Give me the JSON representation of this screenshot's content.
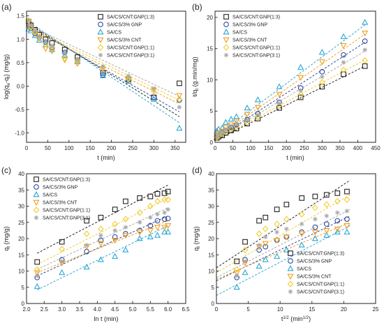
{
  "colors": {
    "SA/CS/CNT:GNP(1:3)": "#222222",
    "SA/CS/3% GNP": "#2e4a9a",
    "SA/CS": "#2aa7d6",
    "SA/CS/3% CNT": "#f0a020",
    "SA/CS/CNT:GNP(1:1)": "#f2cc30",
    "SA/CS/CNT:GNP(3:1)": "#a8a8a8"
  },
  "markers": {
    "SA/CS/CNT:GNP(1:3)": "square",
    "SA/CS/3% GNP": "circle",
    "SA/CS": "triangle-up",
    "SA/CS/3% CNT": "triangle-down",
    "SA/CS/CNT:GNP(1:1)": "diamond",
    "SA/CS/CNT:GNP(3:1)": "asterisk"
  },
  "chart_data": [
    {
      "panel": "(a)",
      "type": "scatter",
      "xlabel": "t (min)",
      "ylabel": "log(qe-qt) (mg/g)",
      "xlim": [
        0,
        375
      ],
      "ylim": [
        -1.2,
        1.6
      ],
      "xticks": [
        "0",
        "50",
        "100",
        "150",
        "200",
        "250",
        "300",
        "350"
      ],
      "yticks": [
        "-1.0",
        "-0.5",
        "0.0",
        "0.5",
        "1.0",
        "1.5"
      ],
      "legend_position": "top-right",
      "fit_lines": "dashed",
      "x": [
        5,
        10,
        20,
        30,
        45,
        60,
        90,
        120,
        180,
        240,
        300,
        360
      ],
      "series": [
        {
          "name": "SA/CS/CNT:GNP(1:3)",
          "values": [
            1.38,
            1.3,
            1.2,
            1.1,
            1.0,
            0.92,
            0.78,
            0.62,
            0.28,
            0.14,
            -0.24,
            0.06
          ],
          "fit": [
            [
              0,
              1.35
            ],
            [
              360,
              -0.65
            ]
          ]
        },
        {
          "name": "SA/CS/3% GNP",
          "values": [
            1.3,
            1.24,
            1.12,
            1.04,
            0.94,
            0.82,
            0.72,
            0.55,
            0.24,
            0.14,
            -0.24,
            -0.3
          ],
          "fit": [
            [
              0,
              1.3
            ],
            [
              360,
              -0.55
            ]
          ]
        },
        {
          "name": "SA/CS",
          "values": [
            1.22,
            1.18,
            1.08,
            0.98,
            0.88,
            0.78,
            0.66,
            0.52,
            0.22,
            0.1,
            -0.28,
            -0.9
          ],
          "fit": [
            [
              0,
              1.4
            ],
            [
              360,
              -0.78
            ]
          ]
        },
        {
          "name": "SA/CS/3% CNT",
          "values": [
            1.38,
            1.26,
            1.14,
            1.02,
            0.8,
            0.75,
            0.56,
            0.48,
            0.36,
            0.16,
            -0.08,
            -0.2
          ],
          "fit": [
            [
              0,
              1.25
            ],
            [
              360,
              -0.38
            ]
          ]
        },
        {
          "name": "SA/CS/CNT:GNP(1:1)",
          "values": [
            1.4,
            1.25,
            1.14,
            1.05,
            0.9,
            0.84,
            0.6,
            0.55,
            0.4,
            0.15,
            -0.12,
            -0.28
          ],
          "fit": [
            [
              0,
              1.28
            ],
            [
              360,
              -0.3
            ]
          ]
        },
        {
          "name": "SA/CS/CNT:GNP(3:1)",
          "values": [
            1.4,
            1.3,
            1.18,
            1.06,
            0.96,
            0.86,
            0.72,
            0.58,
            0.42,
            0.22,
            -0.05,
            -0.45
          ],
          "fit": [
            [
              0,
              1.32
            ],
            [
              360,
              -0.22
            ]
          ]
        }
      ]
    },
    {
      "panel": "(b)",
      "type": "scatter",
      "xlabel": "t (min)",
      "ylabel": "t/qt (g.min/mg)",
      "xlim": [
        0,
        450
      ],
      "ylim": [
        0,
        21
      ],
      "xticks": [
        "0",
        "50",
        "100",
        "150",
        "200",
        "250",
        "300",
        "350",
        "400",
        "450"
      ],
      "yticks": [
        "0",
        "5",
        "10",
        "15",
        "20"
      ],
      "legend_position": "top-left",
      "fit_lines": "dashed",
      "x": [
        5,
        10,
        20,
        30,
        45,
        60,
        90,
        120,
        180,
        240,
        300,
        360,
        420
      ],
      "series": [
        {
          "name": "SA/CS/CNT:GNP(1:3)",
          "values": [
            0.7,
            0.9,
            1.1,
            1.5,
            1.9,
            2.2,
            3.0,
            3.8,
            5.5,
            7.2,
            8.9,
            10.9,
            12.2
          ],
          "fit": [
            [
              0,
              0.3
            ],
            [
              420,
              12.2
            ]
          ]
        },
        {
          "name": "SA/CS/3% GNP",
          "values": [
            0.9,
            1.1,
            1.5,
            1.9,
            2.4,
            2.8,
            3.6,
            4.6,
            6.4,
            8.7,
            11.3,
            14.0,
            16.2
          ],
          "fit": [
            [
              0,
              0.5
            ],
            [
              420,
              16.0
            ]
          ]
        },
        {
          "name": "SA/CS",
          "values": [
            1.8,
            2.1,
            2.3,
            3.2,
            3.7,
            4.1,
            5.5,
            6.8,
            8.9,
            12.0,
            14.4,
            16.9,
            19.2
          ],
          "fit": [
            [
              0,
              0.9
            ],
            [
              420,
              18.8
            ]
          ]
        },
        {
          "name": "SA/CS/3% CNT",
          "values": [
            1.0,
            1.4,
            1.8,
            2.4,
            2.8,
            3.4,
            4.5,
            5.6,
            7.7,
            10.4,
            12.9,
            15.5,
            17.5
          ],
          "fit": [
            [
              0,
              0.7
            ],
            [
              420,
              17.3
            ]
          ]
        },
        {
          "name": "SA/CS/CNT:GNP(1:1)",
          "values": [
            0.8,
            1.0,
            1.4,
            1.7,
            2.1,
            2.5,
            3.2,
            4.1,
            5.9,
            7.7,
            9.6,
            11.6,
            13.1
          ],
          "fit": [
            [
              0,
              0.4
            ],
            [
              420,
              13.2
            ]
          ]
        },
        {
          "name": "SA/CS/CNT:GNP(3:1)",
          "values": [
            0.9,
            1.2,
            1.6,
            2.0,
            2.5,
            2.8,
            3.5,
            4.4,
            6.2,
            8.3,
            10.5,
            12.8,
            14.8
          ],
          "fit": [
            [
              0,
              0.5
            ],
            [
              420,
              14.6
            ]
          ]
        }
      ]
    },
    {
      "panel": "(c)",
      "type": "scatter",
      "xlabel": "ln t (min)",
      "ylabel": "qt (mg/g)",
      "xlim": [
        2.0,
        6.5
      ],
      "ylim": [
        0,
        40
      ],
      "xticks": [
        "2.0",
        "2.5",
        "3.0",
        "3.5",
        "4.0",
        "4.5",
        "5.0",
        "5.5",
        "6.0",
        "6.5"
      ],
      "yticks": [
        "0",
        "5",
        "10",
        "15",
        "20",
        "25",
        "30",
        "35",
        "40"
      ],
      "legend_position": "top-left",
      "fit_lines": "dashed",
      "x": [
        2.3,
        3.0,
        3.7,
        4.1,
        4.5,
        4.8,
        5.2,
        5.5,
        5.7,
        5.9,
        6.0
      ],
      "series": [
        {
          "name": "SA/CS/CNT:GNP(1:3)",
          "values": [
            12.8,
            19.0,
            25.5,
            26.5,
            29.0,
            31.5,
            32.5,
            33.0,
            33.8,
            34.0,
            34.5
          ],
          "fit": [
            [
              2.3,
              15.5
            ],
            [
              6.0,
              36.5
            ]
          ]
        },
        {
          "name": "SA/CS/3% GNP",
          "values": [
            8.0,
            13.5,
            16.0,
            19.5,
            20.5,
            21.5,
            22.5,
            24.0,
            25.5,
            26.0,
            26.2
          ],
          "fit": [
            [
              2.3,
              8.5
            ],
            [
              6.0,
              27.0
            ]
          ]
        },
        {
          "name": "SA/CS",
          "values": [
            5.2,
            9.5,
            11.2,
            13.5,
            14.5,
            16.5,
            20.0,
            20.5,
            21.0,
            22.0,
            22.0
          ],
          "fit": [
            [
              2.3,
              4.2
            ],
            [
              6.0,
              24.0
            ]
          ]
        },
        {
          "name": "SA/CS/3% CNT",
          "values": [
            9.5,
            12.5,
            17.5,
            18.5,
            19.5,
            21.0,
            22.0,
            22.5,
            23.5,
            23.5,
            24.0
          ],
          "fit": [
            [
              2.3,
              9.5
            ],
            [
              6.0,
              25.5
            ]
          ]
        },
        {
          "name": "SA/CS/CNT:GNP(1:1)",
          "values": [
            10.5,
            16.8,
            21.5,
            23.0,
            24.5,
            26.0,
            28.0,
            30.0,
            31.5,
            32.0,
            32.0
          ],
          "fit": [
            [
              2.3,
              12.0
            ],
            [
              6.0,
              32.5
            ]
          ]
        },
        {
          "name": "SA/CS/CNT:GNP(3:1)",
          "values": [
            8.5,
            13.0,
            18.0,
            21.0,
            22.5,
            23.5,
            25.0,
            26.5,
            27.5,
            28.0,
            29.0
          ],
          "fit": [
            [
              2.3,
              10.5
            ],
            [
              6.0,
              29.5
            ]
          ]
        }
      ]
    },
    {
      "panel": "(d)",
      "type": "scatter",
      "xlabel": "t1/2 (min1/2)",
      "ylabel": "qt (mg/g)",
      "xlim": [
        0,
        25
      ],
      "ylim": [
        0,
        40
      ],
      "xticks": [
        "0",
        "5",
        "10",
        "15",
        "20",
        "25"
      ],
      "yticks": [
        "0",
        "5",
        "10",
        "15",
        "20",
        "25",
        "30",
        "35",
        "40"
      ],
      "legend_position": "bottom-right",
      "fit_lines": "dashed",
      "x": [
        3.2,
        4.5,
        6.7,
        7.7,
        9.5,
        11.0,
        13.4,
        15.5,
        17.3,
        19.0,
        20.5
      ],
      "series": [
        {
          "name": "SA/CS/CNT:GNP(1:3)",
          "values": [
            13.0,
            19.0,
            25.5,
            26.5,
            29.0,
            30.5,
            32.5,
            33.0,
            33.5,
            34.0,
            34.5
          ],
          "fit": [
            [
              0,
              11.0
            ],
            [
              21,
              38.0
            ]
          ]
        },
        {
          "name": "SA/CS/3% GNP",
          "values": [
            8.0,
            13.5,
            16.5,
            17.5,
            19.5,
            20.5,
            22.0,
            23.5,
            24.5,
            25.5,
            26.0
          ],
          "fit": [
            [
              0,
              7.0
            ],
            [
              21,
              27.0
            ]
          ]
        },
        {
          "name": "SA/CS",
          "values": [
            5.0,
            9.5,
            11.5,
            13.5,
            14.5,
            16.5,
            18.0,
            20.0,
            21.0,
            22.0,
            22.0
          ],
          "fit": [
            [
              0,
              2.5
            ],
            [
              21,
              24.0
            ]
          ]
        },
        {
          "name": "SA/CS/3% CNT",
          "values": [
            9.5,
            12.5,
            17.5,
            18.5,
            19.5,
            20.5,
            21.5,
            22.0,
            22.5,
            23.0,
            24.0
          ],
          "fit": [
            [
              0,
              7.5
            ],
            [
              21,
              25.0
            ]
          ]
        },
        {
          "name": "SA/CS/CNT:GNP(1:1)",
          "values": [
            10.5,
            16.5,
            21.5,
            23.0,
            24.5,
            26.0,
            27.5,
            29.5,
            30.5,
            31.5,
            32.0
          ],
          "fit": [
            [
              0,
              9.5
            ],
            [
              21,
              33.5
            ]
          ]
        },
        {
          "name": "SA/CS/CNT:GNP(3:1)",
          "values": [
            8.5,
            13.0,
            18.0,
            20.5,
            22.0,
            23.0,
            24.5,
            26.0,
            27.0,
            28.0,
            28.5
          ],
          "fit": [
            [
              0,
              8.0
            ],
            [
              21,
              29.0
            ]
          ]
        }
      ]
    }
  ]
}
